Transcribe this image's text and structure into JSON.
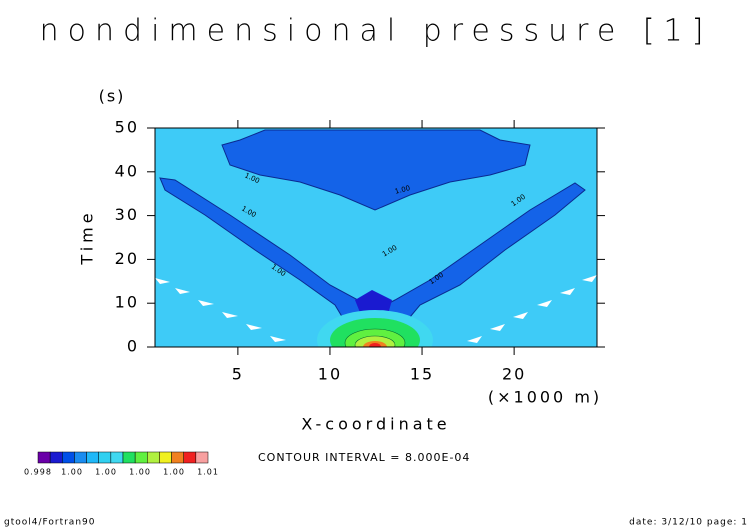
{
  "chart_data": {
    "type": "contour",
    "title": "nondimensional pressure [1]",
    "x_label": "X-coordinate",
    "x_unit": "(×1000 m)",
    "y_label": "Time",
    "y_unit": "(s)",
    "xlim": [
      0.5,
      24.5
    ],
    "xticks": [
      5,
      10,
      15,
      20
    ],
    "ylim": [
      0,
      50
    ],
    "yticks": [
      0,
      10,
      20,
      30,
      40,
      50
    ],
    "contour_labels": [
      "1.00",
      "1.00",
      "1.00",
      "1.00",
      "1.00",
      "1.00",
      "1.00"
    ],
    "contour_interval": "CONTOUR INTERVAL = 8.000E-04",
    "colorbar": {
      "colors": [
        "#6a00a8",
        "#1a1ad0",
        "#0050e8",
        "#1a8cf0",
        "#20b8f8",
        "#30d0f0",
        "#40d8f0",
        "#20e060",
        "#60f040",
        "#b0f040",
        "#f0f020",
        "#f08020",
        "#f02020",
        "#f8a0a0"
      ],
      "labels": [
        "0.998",
        "1.00",
        "1.00",
        "1.00",
        "1.00",
        "1.01"
      ]
    },
    "footer_left": "gtool4/Fortran90",
    "footer_right": "date: 3/12/10 page: 1"
  }
}
